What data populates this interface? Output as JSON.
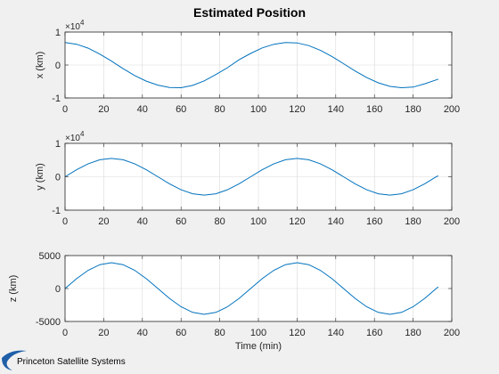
{
  "figure_title": "Estimated Position",
  "footer": {
    "logo_text": "Princeton Satellite Systems",
    "logo_color": "#1f5fa8"
  },
  "colors": {
    "line": "#0072bd",
    "axes_bg": "#ffffff",
    "figure_bg": "#f0f0f0",
    "grid": "#d9d9d9"
  },
  "chart_data": [
    {
      "type": "line",
      "ylabel": "x (km)",
      "xlabel": "",
      "xlim": [
        0,
        200
      ],
      "ylim": [
        -1,
        1
      ],
      "xticks": [
        "0",
        "20",
        "40",
        "60",
        "80",
        "100",
        "120",
        "140",
        "160",
        "180",
        "200"
      ],
      "yticks": [
        "-1",
        "0",
        "1"
      ],
      "exponent_label": {
        "base": "×10",
        "power": "4"
      },
      "grid": true,
      "series": [
        {
          "x": [
            0,
            6,
            12,
            18,
            24,
            30,
            36,
            42,
            48,
            54,
            60,
            66,
            72,
            78,
            84,
            90,
            96,
            102,
            108,
            114,
            120,
            126,
            132,
            138,
            144,
            150,
            156,
            162,
            168,
            174,
            180,
            186,
            192,
            193
          ],
          "values": [
            0.68,
            0.63,
            0.51,
            0.33,
            0.12,
            -0.11,
            -0.32,
            -0.49,
            -0.61,
            -0.68,
            -0.69,
            -0.62,
            -0.48,
            -0.29,
            -0.08,
            0.16,
            0.35,
            0.52,
            0.63,
            0.68,
            0.67,
            0.59,
            0.45,
            0.26,
            0.04,
            -0.18,
            -0.38,
            -0.54,
            -0.65,
            -0.69,
            -0.67,
            -0.57,
            -0.45,
            -0.43
          ]
        }
      ]
    },
    {
      "type": "line",
      "ylabel": "y (km)",
      "xlabel": "",
      "xlim": [
        0,
        200
      ],
      "ylim": [
        -1,
        1
      ],
      "xticks": [
        "0",
        "20",
        "40",
        "60",
        "80",
        "100",
        "120",
        "140",
        "160",
        "180",
        "200"
      ],
      "yticks": [
        "-1",
        "0",
        "1"
      ],
      "exponent_label": {
        "base": "×10",
        "power": "4"
      },
      "grid": true,
      "series": [
        {
          "x": [
            0,
            6,
            12,
            18,
            24,
            30,
            36,
            42,
            48,
            54,
            60,
            66,
            72,
            78,
            84,
            90,
            96,
            102,
            108,
            114,
            120,
            126,
            132,
            138,
            144,
            150,
            156,
            162,
            168,
            174,
            180,
            186,
            192,
            193
          ],
          "values": [
            0.0,
            0.21,
            0.39,
            0.51,
            0.55,
            0.51,
            0.39,
            0.21,
            0.0,
            -0.21,
            -0.39,
            -0.51,
            -0.55,
            -0.51,
            -0.39,
            -0.21,
            0.0,
            0.21,
            0.39,
            0.51,
            0.55,
            0.51,
            0.39,
            0.21,
            0.0,
            -0.21,
            -0.39,
            -0.51,
            -0.55,
            -0.51,
            -0.39,
            -0.21,
            0.0,
            0.03
          ]
        }
      ]
    },
    {
      "type": "line",
      "ylabel": "z (km)",
      "xlabel": "Time (min)",
      "xlim": [
        0,
        200
      ],
      "ylim": [
        -5000,
        5000
      ],
      "xticks": [
        "0",
        "20",
        "40",
        "60",
        "80",
        "100",
        "120",
        "140",
        "160",
        "180",
        "200"
      ],
      "yticks": [
        "-5000",
        "0",
        "5000"
      ],
      "grid": true,
      "series": [
        {
          "x": [
            0,
            6,
            12,
            18,
            24,
            30,
            36,
            42,
            48,
            54,
            60,
            66,
            72,
            78,
            84,
            90,
            96,
            102,
            108,
            114,
            120,
            126,
            132,
            138,
            144,
            150,
            156,
            162,
            168,
            174,
            180,
            186,
            192,
            193
          ],
          "values": [
            0,
            1500,
            2770,
            3620,
            3920,
            3620,
            2770,
            1500,
            0,
            -1500,
            -2770,
            -3620,
            -3920,
            -3620,
            -2770,
            -1500,
            0,
            1500,
            2770,
            3620,
            3920,
            3620,
            2770,
            1500,
            0,
            -1500,
            -2770,
            -3620,
            -3920,
            -3620,
            -2770,
            -1500,
            0,
            250
          ]
        }
      ]
    }
  ]
}
